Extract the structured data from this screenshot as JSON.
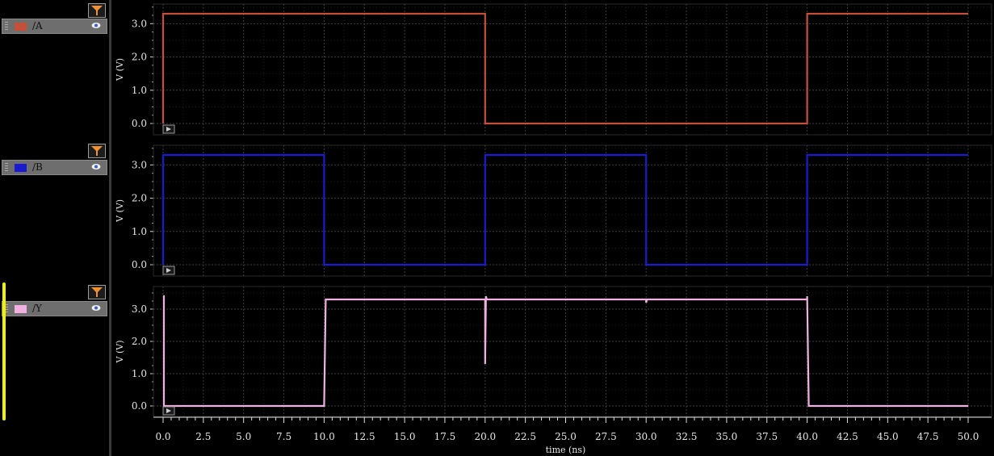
{
  "signals": [
    {
      "name": "/A",
      "color": "#c4503a"
    },
    {
      "name": "/B",
      "color": "#1a1ad0"
    },
    {
      "name": "/Y",
      "color": "#f0b0e0"
    }
  ],
  "icons": {
    "filter": "filter-icon",
    "visibility": "eye-icon",
    "expand": "play-arrow-icon"
  },
  "chart_data": {
    "type": "line",
    "xlabel": "time (ns)",
    "xlim": [
      0,
      50
    ],
    "x_ticks": [
      "0.0",
      "2.5",
      "5.0",
      "7.5",
      "10.0",
      "12.5",
      "15.0",
      "17.5",
      "20.0",
      "22.5",
      "25.0",
      "27.5",
      "30.0",
      "32.5",
      "35.0",
      "37.5",
      "40.0",
      "42.5",
      "45.0",
      "47.5",
      "50.0"
    ],
    "ylabel": "V (V)",
    "y_ticks": [
      "0.0",
      "1.0",
      "2.0",
      "3.0"
    ],
    "grid": true,
    "panels": [
      {
        "series": "/A",
        "ylim": [
          0,
          3.3
        ],
        "x": [
          0,
          0,
          20,
          20,
          40,
          40,
          50
        ],
        "y": [
          0,
          3.3,
          3.3,
          0,
          0,
          3.3,
          3.3
        ]
      },
      {
        "series": "/B",
        "ylim": [
          0,
          3.3
        ],
        "x": [
          0,
          0,
          10,
          10,
          20,
          20,
          30,
          30,
          40,
          40,
          50
        ],
        "y": [
          0,
          3.3,
          3.3,
          0,
          0,
          3.3,
          3.3,
          0,
          0,
          3.3,
          3.3
        ]
      },
      {
        "series": "/Y",
        "ylim": [
          0,
          3.3
        ],
        "x": [
          0,
          0.05,
          0.05,
          10,
          10.1,
          20,
          20,
          20.05,
          20.1,
          30,
          30,
          30.05,
          40,
          40,
          40.1,
          50
        ],
        "y": [
          3.4,
          3.4,
          0,
          0,
          3.3,
          3.3,
          1.3,
          3.4,
          3.3,
          3.3,
          3.2,
          3.3,
          3.3,
          3.4,
          0,
          0
        ]
      }
    ]
  }
}
